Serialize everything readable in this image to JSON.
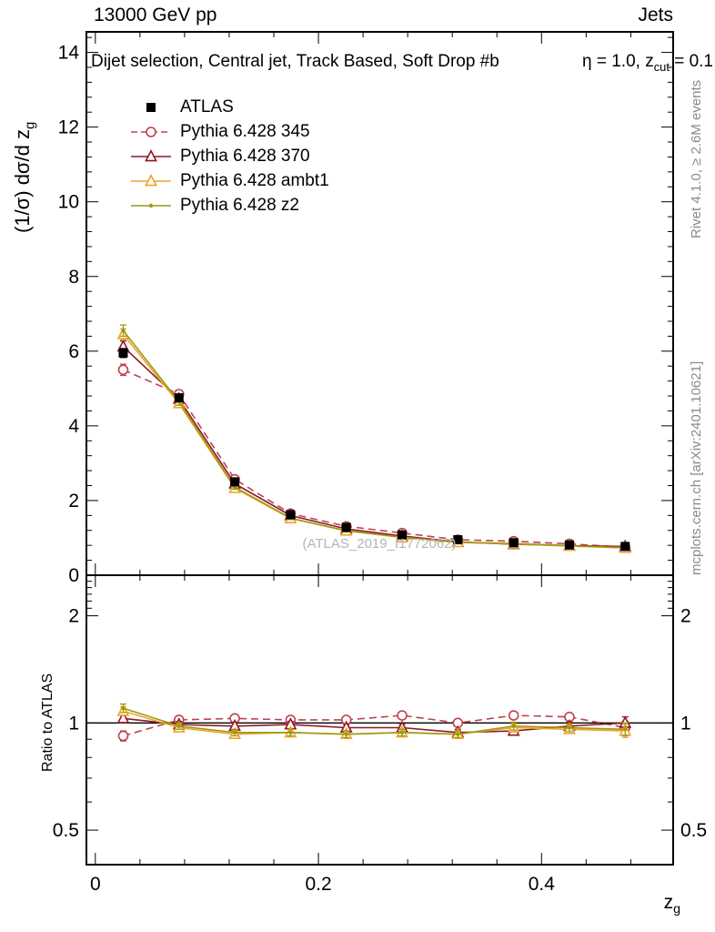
{
  "header": {
    "left": "13000 GeV pp",
    "right": "Jets"
  },
  "annotation": {
    "prefix": "Dijet selection, Central jet, Track Based, Soft Drop #b",
    "eta": "η = 1.0, z",
    "sub": "cut",
    "suffix": " = 0.1"
  },
  "axis_titles": {
    "y_main_prefix": "(1/σ) dσ/d z",
    "y_main_sub": "g",
    "ratio": "Ratio to ATLAS",
    "x_prefix": "z",
    "x_sub": "g"
  },
  "side_notes": {
    "top": "Rivet 4.1.0, ≥ 2.6M events",
    "bottom": "mcplots.cern.ch [arXiv:2401.10621]"
  },
  "watermark": "(ATLAS_2019_I1772062)",
  "chart_data": {
    "type": "line",
    "title": "13000 GeV pp — Jets",
    "xlabel": "z_g",
    "ylabel": "(1/σ) dσ/d z_g",
    "ratio_label": "Ratio to ATLAS",
    "legend_position": "top-left-inside",
    "grid": false,
    "x": [
      0.025,
      0.075,
      0.125,
      0.175,
      0.225,
      0.275,
      0.325,
      0.375,
      0.425,
      0.475
    ],
    "axes": {
      "x": {
        "min": -0.008,
        "max": 0.518,
        "major": [
          0,
          0.2,
          0.4
        ],
        "labels": [
          "0",
          "0.2",
          "0.4"
        ],
        "minor_step": 0.04
      },
      "y_main": {
        "min": 0,
        "max": 14.55,
        "major": [
          0,
          2,
          4,
          6,
          8,
          10,
          12,
          14
        ],
        "labels": [
          "0",
          "2",
          "4",
          "6",
          "8",
          "10",
          "12",
          "14"
        ],
        "minor_step": 0.4
      },
      "y_ratio": {
        "min": 0.4,
        "max": 2.6,
        "scale": "log",
        "major": [
          0.5,
          1,
          2
        ],
        "labels": [
          "0.5",
          "1",
          "2"
        ],
        "minor": [
          0.6,
          0.7,
          0.8,
          0.9,
          2.1,
          2.2,
          2.3,
          2.4,
          2.5
        ]
      }
    },
    "series": [
      {
        "name": "Pythia 6.428 345",
        "color": "#c04050",
        "marker": "circle-open",
        "line": "dashed",
        "values": [
          5.5,
          4.85,
          2.57,
          1.65,
          1.31,
          1.13,
          0.95,
          0.91,
          0.84,
          0.75
        ],
        "yerr": [
          0.15,
          0.1,
          0.06,
          0.04,
          0.03,
          0.03,
          0.03,
          0.03,
          0.03,
          0.04
        ],
        "ratio": [
          0.92,
          1.02,
          1.03,
          1.02,
          1.02,
          1.05,
          1.0,
          1.05,
          1.04,
          0.97
        ],
        "ratio_err": [
          0.03,
          0.02,
          0.02,
          0.02,
          0.02,
          0.02,
          0.02,
          0.025,
          0.025,
          0.04
        ]
      },
      {
        "name": "Pythia 6.428 370",
        "color": "#8e1726",
        "marker": "triangle-open",
        "line": "solid",
        "values": [
          6.12,
          4.72,
          2.45,
          1.6,
          1.24,
          1.05,
          0.89,
          0.83,
          0.79,
          0.77
        ],
        "yerr": [
          0.15,
          0.1,
          0.06,
          0.04,
          0.03,
          0.03,
          0.03,
          0.03,
          0.03,
          0.04
        ],
        "ratio": [
          1.03,
          0.99,
          0.98,
          0.99,
          0.97,
          0.97,
          0.94,
          0.95,
          0.98,
          1.0
        ],
        "ratio_err": [
          0.03,
          0.02,
          0.02,
          0.02,
          0.02,
          0.02,
          0.02,
          0.025,
          0.025,
          0.04
        ]
      },
      {
        "name": "Pythia 6.428 ambt1",
        "color": "#eea32c",
        "marker": "triangle-open",
        "line": "solid",
        "values": [
          6.45,
          4.6,
          2.33,
          1.52,
          1.19,
          1.01,
          0.88,
          0.84,
          0.78,
          0.73
        ],
        "yerr": [
          0.15,
          0.1,
          0.06,
          0.04,
          0.03,
          0.03,
          0.03,
          0.03,
          0.03,
          0.04
        ],
        "ratio": [
          1.08,
          0.97,
          0.93,
          0.94,
          0.93,
          0.94,
          0.93,
          0.97,
          0.96,
          0.95
        ],
        "ratio_err": [
          0.03,
          0.02,
          0.02,
          0.02,
          0.02,
          0.02,
          0.02,
          0.025,
          0.025,
          0.04
        ]
      },
      {
        "name": "Pythia 6.428 z2",
        "color": "#9a9a10",
        "marker": "dot",
        "line": "solid",
        "values": [
          6.55,
          4.65,
          2.36,
          1.53,
          1.19,
          1.02,
          0.88,
          0.85,
          0.79,
          0.74
        ],
        "yerr": [
          0.15,
          0.1,
          0.06,
          0.04,
          0.03,
          0.03,
          0.03,
          0.03,
          0.03,
          0.04
        ],
        "ratio": [
          1.1,
          0.98,
          0.94,
          0.94,
          0.93,
          0.94,
          0.93,
          0.98,
          0.97,
          0.96
        ],
        "ratio_err": [
          0.03,
          0.02,
          0.02,
          0.02,
          0.02,
          0.02,
          0.02,
          0.025,
          0.025,
          0.04
        ]
      },
      {
        "name": "ATLAS",
        "color": "#000000",
        "marker": "square-filled",
        "line": "none",
        "values": [
          5.95,
          4.75,
          2.5,
          1.62,
          1.28,
          1.08,
          0.95,
          0.87,
          0.81,
          0.77
        ],
        "yerr": [
          0.12,
          0.08,
          0.05,
          0.03,
          0.03,
          0.02,
          0.02,
          0.02,
          0.02,
          0.02
        ],
        "ratio": null,
        "ratio_reference": true
      }
    ],
    "legend_order": [
      "ATLAS",
      "Pythia 6.428 345",
      "Pythia 6.428 370",
      "Pythia 6.428 ambt1",
      "Pythia 6.428 z2"
    ]
  }
}
